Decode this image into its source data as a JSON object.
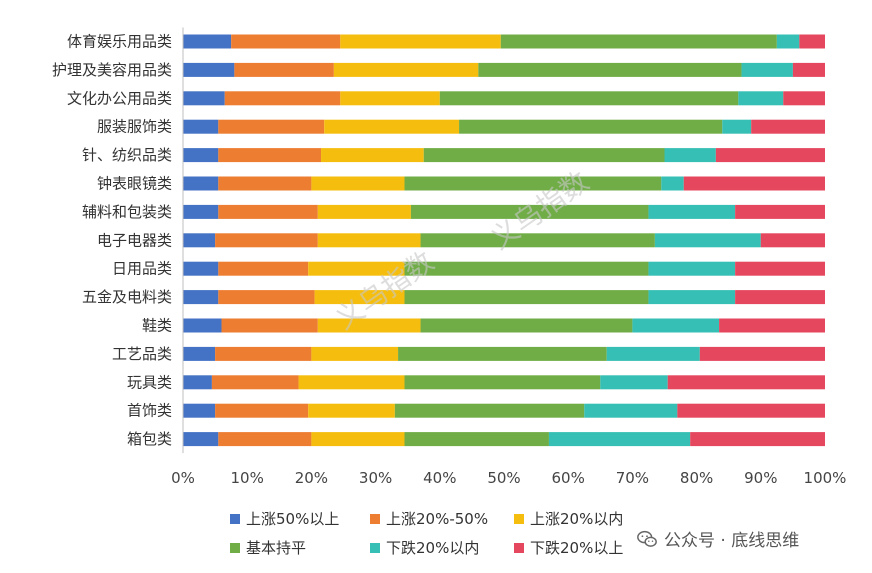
{
  "chart_data": {
    "type": "bar",
    "orientation": "horizontal",
    "stacked": "percent",
    "categories": [
      "体育娱乐用品类",
      "护理及美容用品类",
      "文化办公用品类",
      "服装服饰类",
      "针、纺织品类",
      "钟表眼镜类",
      "辅料和包装类",
      "电子电器类",
      "日用品类",
      "五金及电料类",
      "鞋类",
      "工艺品类",
      "玩具类",
      "首饰类",
      "箱包类"
    ],
    "series": [
      {
        "name": "上涨50%以上",
        "color": "#4472C4",
        "values": [
          7.5,
          8,
          6.5,
          5.5,
          5.5,
          5.5,
          5.5,
          5,
          5.5,
          5.5,
          6,
          5,
          4.5,
          5,
          5.5
        ]
      },
      {
        "name": "上涨20%-50%",
        "color": "#ED7D31",
        "values": [
          17,
          15.5,
          18,
          16.5,
          16,
          14.5,
          15.5,
          16,
          14,
          15,
          15,
          15,
          13.5,
          14.5,
          14.5
        ]
      },
      {
        "name": "上涨20%以内",
        "color": "#F5BE0F",
        "values": [
          25,
          22.5,
          15.5,
          21,
          16,
          14.5,
          14.5,
          16,
          15,
          14,
          16,
          13.5,
          16.5,
          13.5,
          14.5
        ]
      },
      {
        "name": "基本持平",
        "color": "#70AD47",
        "values": [
          43,
          41,
          46.5,
          41,
          37.5,
          40,
          37,
          36.5,
          38,
          38,
          33,
          32.5,
          30.5,
          29.5,
          22.5
        ]
      },
      {
        "name": "下跌20%以内",
        "color": "#36BFB4",
        "values": [
          3.5,
          8,
          7,
          4.5,
          8,
          3.5,
          13.5,
          16.5,
          13.5,
          13.5,
          13.5,
          14.5,
          10.5,
          14.5,
          22
        ]
      },
      {
        "name": "下跌20%以上",
        "color": "#E4475E",
        "values": [
          4,
          5,
          6.5,
          11.5,
          17,
          22,
          14,
          10,
          14,
          14,
          16.5,
          19.5,
          24.5,
          23,
          21
        ]
      }
    ],
    "xticks": [
      "0%",
      "10%",
      "20%",
      "30%",
      "40%",
      "50%",
      "60%",
      "70%",
      "80%",
      "90%",
      "100%"
    ],
    "xlim": [
      0,
      100
    ],
    "grid": false,
    "legend_position": "bottom",
    "watermarks": [
      "义乌指数",
      "义乌指数"
    ]
  },
  "credit": {
    "text": "公众号 · 底线思维",
    "icon": "wechat-icon"
  }
}
